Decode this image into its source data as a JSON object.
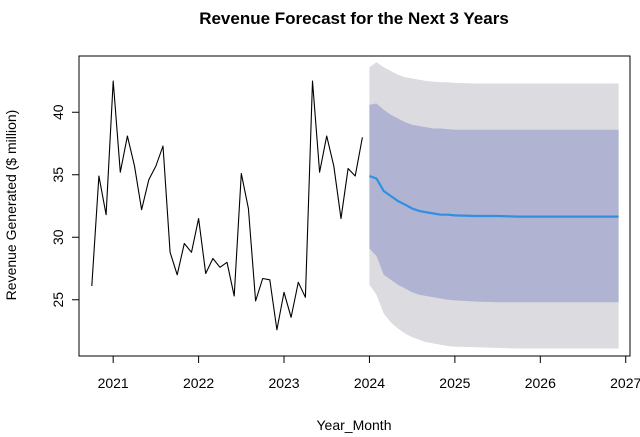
{
  "chart_data": {
    "type": "line",
    "title": "Revenue Forecast for the Next 3 Years",
    "xlabel": "Year_Month",
    "ylabel": "Revenue Generated ($ million)",
    "xlim": [
      2020.6,
      2027.05
    ],
    "ylim": [
      20.5,
      44.5
    ],
    "x_ticks": [
      2021,
      2022,
      2023,
      2024,
      2025,
      2026,
      2027
    ],
    "y_ticks": [
      25,
      30,
      35,
      40
    ],
    "grid": false,
    "legend": "none",
    "colors": {
      "historical": "#000000",
      "forecast": "#2f8fe0",
      "band_80": "#b0b3d2",
      "band_95": "#dbdbe0"
    },
    "series": [
      {
        "role": "historical",
        "x": [
          2020.75,
          2020.833,
          2020.917,
          2021.0,
          2021.083,
          2021.167,
          2021.25,
          2021.333,
          2021.417,
          2021.5,
          2021.583,
          2021.667,
          2021.75,
          2021.833,
          2021.917,
          2022.0,
          2022.083,
          2022.167,
          2022.25,
          2022.333,
          2022.417,
          2022.5,
          2022.583,
          2022.667,
          2022.75,
          2022.833,
          2022.917,
          2023.0,
          2023.083,
          2023.167,
          2023.25,
          2023.333,
          2023.417,
          2023.5,
          2023.583,
          2023.667,
          2023.75,
          2023.833,
          2023.917
        ],
        "values": [
          26.1,
          34.9,
          31.8,
          42.5,
          35.2,
          38.1,
          35.7,
          32.2,
          34.6,
          35.7,
          37.3,
          28.8,
          27.0,
          29.5,
          28.8,
          31.5,
          27.1,
          28.3,
          27.6,
          28.0,
          25.3,
          35.1,
          32.3,
          24.9,
          26.7,
          26.6,
          22.6,
          25.6,
          23.6,
          26.4,
          25.2,
          42.5,
          35.2,
          38.1,
          35.7,
          31.5,
          35.5,
          34.9,
          38.0
        ]
      },
      {
        "role": "forecast",
        "x": [
          2024.0,
          2024.083,
          2024.167,
          2024.25,
          2024.333,
          2024.417,
          2024.5,
          2024.583,
          2024.667,
          2024.75,
          2024.833,
          2024.917,
          2025.0,
          2025.25,
          2025.5,
          2025.75,
          2026.0,
          2026.25,
          2026.5,
          2026.75,
          2026.917
        ],
        "values": [
          34.9,
          34.7,
          33.7,
          33.3,
          32.9,
          32.6,
          32.3,
          32.1,
          32.0,
          31.9,
          31.8,
          31.8,
          31.75,
          31.7,
          31.7,
          31.65,
          31.65,
          31.65,
          31.65,
          31.65,
          31.65
        ],
        "lo80": [
          29.1,
          28.5,
          27.0,
          26.6,
          26.2,
          25.9,
          25.6,
          25.4,
          25.3,
          25.2,
          25.1,
          25.0,
          24.95,
          24.85,
          24.8,
          24.8,
          24.8,
          24.8,
          24.8,
          24.8,
          24.8
        ],
        "hi80": [
          40.6,
          40.7,
          40.2,
          39.8,
          39.5,
          39.2,
          39.0,
          38.9,
          38.8,
          38.7,
          38.7,
          38.65,
          38.6,
          38.6,
          38.6,
          38.6,
          38.6,
          38.6,
          38.6,
          38.6,
          38.6
        ],
        "lo95": [
          26.2,
          25.4,
          23.9,
          23.2,
          22.7,
          22.3,
          22.0,
          21.8,
          21.6,
          21.5,
          21.4,
          21.3,
          21.25,
          21.2,
          21.15,
          21.1,
          21.1,
          21.1,
          21.1,
          21.1,
          21.1
        ],
        "hi95": [
          43.6,
          44.0,
          43.6,
          43.3,
          43.0,
          42.8,
          42.7,
          42.6,
          42.5,
          42.45,
          42.4,
          42.4,
          42.35,
          42.3,
          42.3,
          42.3,
          42.3,
          42.3,
          42.3,
          42.3,
          42.3
        ]
      }
    ]
  }
}
